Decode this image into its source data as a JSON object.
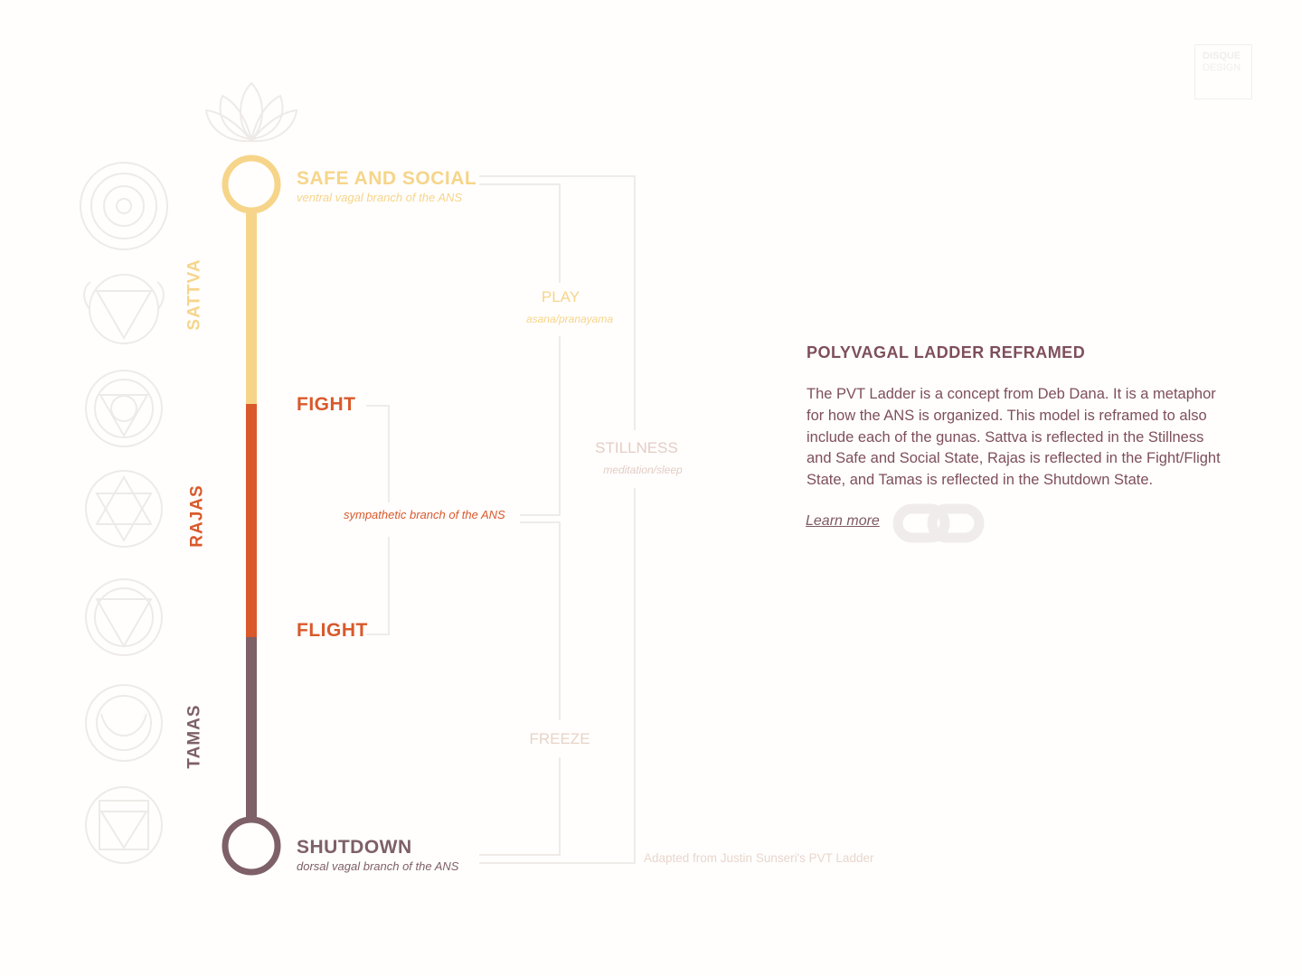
{
  "logo": {
    "line1": "DISQUE",
    "line2": "DESIGN"
  },
  "gunas": [
    {
      "label": "SATTVA",
      "color": "#f6d58a"
    },
    {
      "label": "RAJAS",
      "color": "#d9592b"
    },
    {
      "label": "TAMAS",
      "color": "#7e6068"
    }
  ],
  "states": {
    "safe": {
      "title": "SAFE AND SOCIAL",
      "subtitle": "ventral vagal branch of the ANS"
    },
    "fight": {
      "title": "FIGHT"
    },
    "sympathetic": {
      "subtitle": "sympathetic branch of the ANS"
    },
    "flight": {
      "title": "FLIGHT"
    },
    "shutdown": {
      "title": "SHUTDOWN",
      "subtitle": "dorsal vagal branch of the ANS"
    }
  },
  "blends": {
    "play": {
      "title": "PLAY",
      "subtitle": "asana/pranayama"
    },
    "stillness": {
      "title": "STILLNESS",
      "subtitle": "meditation/sleep"
    },
    "freeze": {
      "title": "FREEZE"
    }
  },
  "panel": {
    "title": "POLYVAGAL LADDER REFRAMED",
    "body": "The PVT Ladder is a concept from Deb Dana. It is a metaphor for how the ANS is organized. This model is reframed to also include each of the gunas. Sattva is reflected in the Stillness and Safe and Social State, Rajas is reflected in the Fight/Flight State, and Tamas is reflected in the Shutdown State.",
    "learn_more": "Learn more"
  },
  "credit": "Adapted from Justin Sunseri's PVT Ladder",
  "icons": [
    "lotus-icon",
    "sahasrara-chakra-icon",
    "ajna-chakra-icon",
    "vishuddha-chakra-icon",
    "anahata-chakra-icon",
    "manipura-chakra-icon",
    "svadhishthana-chakra-icon",
    "muladhara-chakra-icon",
    "link-icon"
  ]
}
